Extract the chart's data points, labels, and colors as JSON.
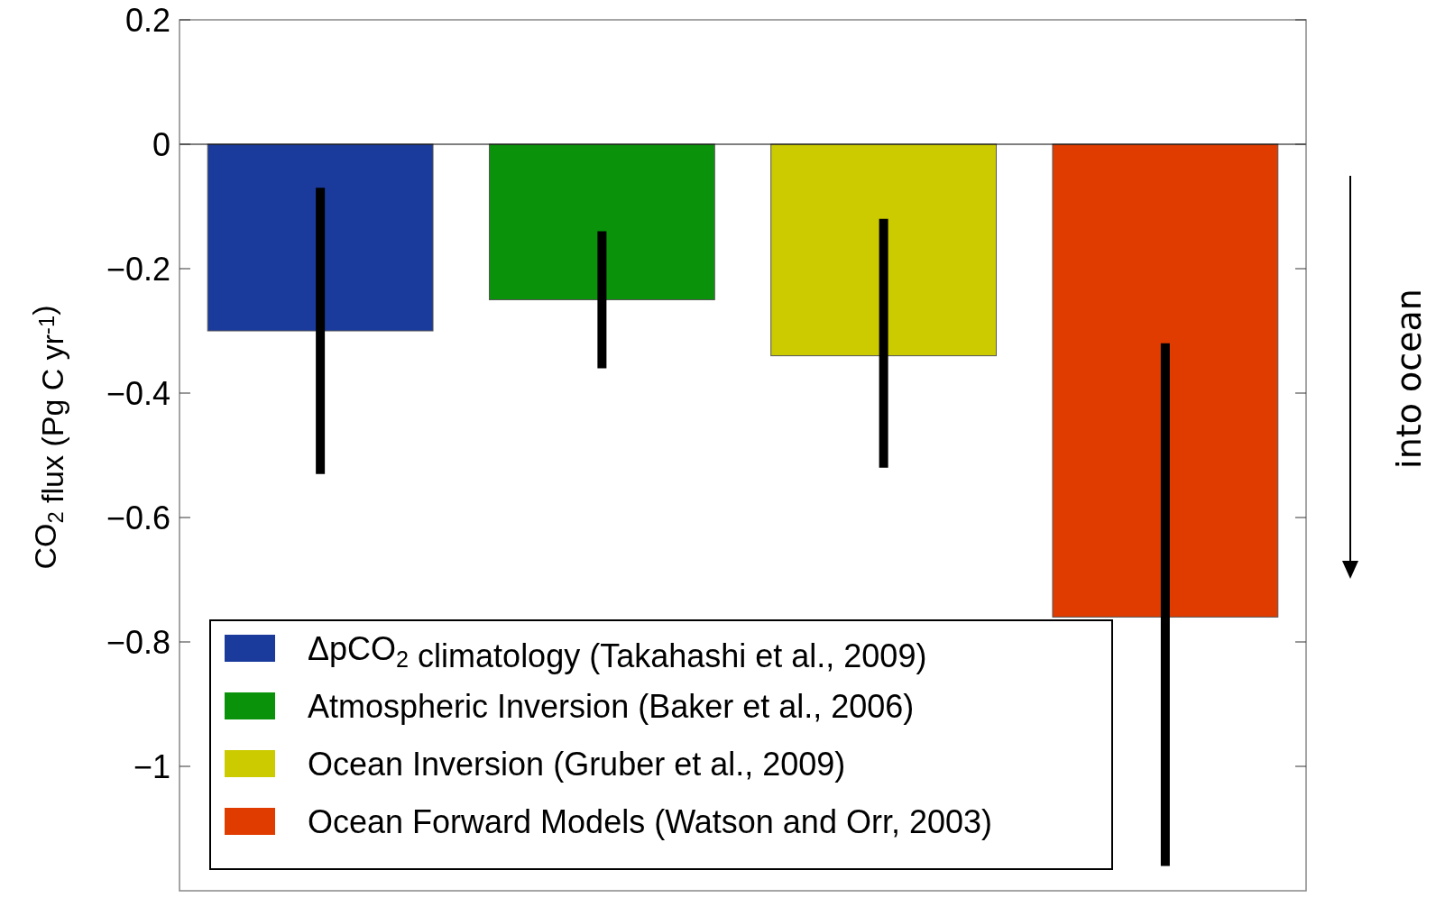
{
  "chart_data": {
    "type": "bar",
    "ylabel": "CO$_{2}$ flux (Pg C yr$^{-1}$)",
    "categories": [
      null,
      null,
      null,
      null
    ],
    "series": [
      {
        "name": "ΔpCO$_{2}$ climatology (Takahashi et al., 2009)",
        "color": "#1a3a9c",
        "values": [
          -0.3,
          null,
          null,
          null
        ],
        "errors": [
          [
            -0.53,
            -0.07
          ],
          null,
          null,
          null
        ]
      },
      {
        "name": "Atmospheric Inversion (Baker et al., 2006)",
        "color": "#0a930a",
        "values": [
          null,
          -0.25,
          null,
          null
        ],
        "errors": [
          null,
          [
            -0.36,
            -0.14
          ],
          null,
          null
        ]
      },
      {
        "name": "Ocean Inversion (Gruber et al., 2009)",
        "color": "#cbcb00",
        "values": [
          null,
          null,
          -0.34,
          null
        ],
        "errors": [
          null,
          null,
          [
            -0.52,
            -0.12
          ],
          null
        ]
      },
      {
        "name": "Ocean Forward Models (Watson and Orr, 2003)",
        "color": "#e03c00",
        "values": [
          null,
          null,
          null,
          -0.76
        ],
        "errors": [
          null,
          null,
          null,
          [
            -1.16,
            -0.32
          ]
        ]
      }
    ],
    "ylim": [
      -1.2,
      0.2
    ],
    "yticks": [
      0.2,
      0,
      {
        "value": -0.2,
        "label": "−0.2"
      },
      {
        "value": -0.4,
        "label": "−0.4"
      },
      {
        "value": -0.6,
        "label": "−0.6"
      },
      {
        "value": -0.8,
        "label": "−0.8"
      },
      {
        "value": -1,
        "label": "−1"
      }
    ],
    "ref_lines": [
      {
        "axis": "y",
        "value": 0,
        "color": "#000000"
      }
    ],
    "annotations": [
      "into ocean"
    ],
    "legend": "bottom left",
    "grid": false
  }
}
